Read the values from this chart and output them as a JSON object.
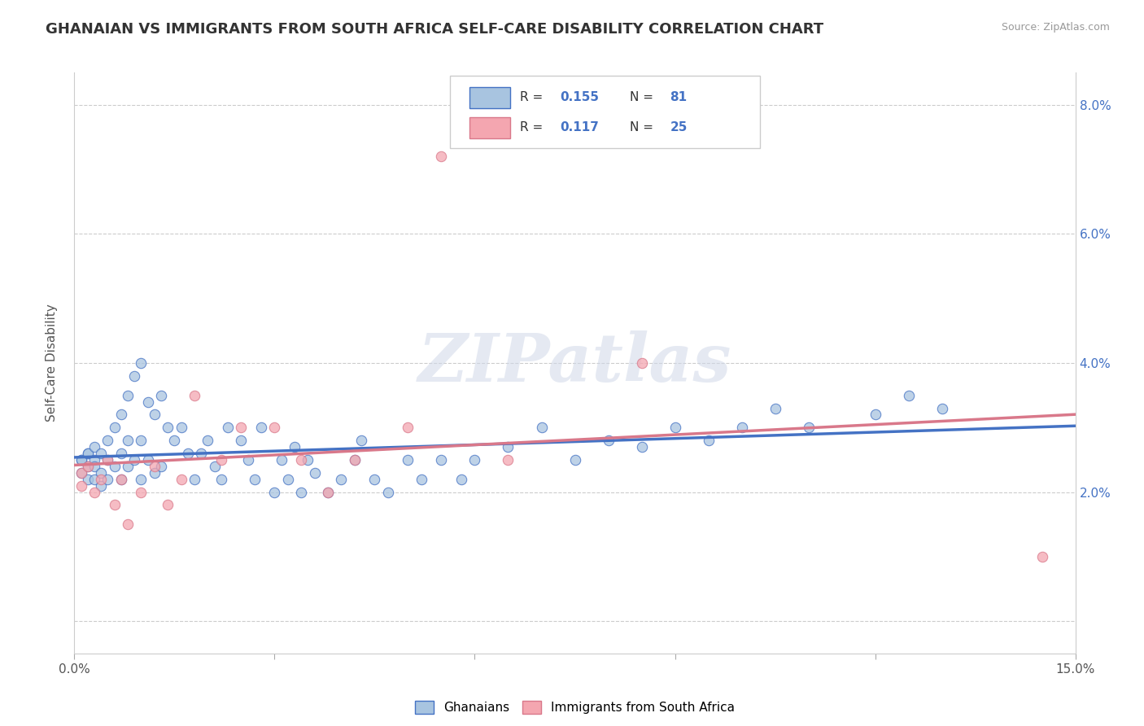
{
  "title": "GHANAIAN VS IMMIGRANTS FROM SOUTH AFRICA SELF-CARE DISABILITY CORRELATION CHART",
  "source_text": "Source: ZipAtlas.com",
  "ylabel": "Self-Care Disability",
  "xlim": [
    0.0,
    0.15
  ],
  "ylim": [
    -0.005,
    0.085
  ],
  "x_ticks": [
    0.0,
    0.03,
    0.06,
    0.09,
    0.12,
    0.15
  ],
  "x_tick_labels": [
    "0.0%",
    "",
    "",
    "",
    "",
    "15.0%"
  ],
  "y_ticks": [
    0.0,
    0.02,
    0.04,
    0.06,
    0.08
  ],
  "y_tick_labels": [
    "",
    "2.0%",
    "4.0%",
    "6.0%",
    "8.0%"
  ],
  "ghanaian_color": "#a8c4e0",
  "immigrant_color": "#f4a6b0",
  "ghanaian_line_color": "#4472c4",
  "immigrant_line_color": "#d9788a",
  "ghanaian_x": [
    0.001,
    0.001,
    0.001,
    0.002,
    0.002,
    0.002,
    0.002,
    0.003,
    0.003,
    0.003,
    0.003,
    0.004,
    0.004,
    0.004,
    0.005,
    0.005,
    0.005,
    0.006,
    0.006,
    0.007,
    0.007,
    0.007,
    0.008,
    0.008,
    0.008,
    0.009,
    0.009,
    0.01,
    0.01,
    0.01,
    0.011,
    0.011,
    0.012,
    0.012,
    0.013,
    0.013,
    0.014,
    0.015,
    0.016,
    0.017,
    0.018,
    0.019,
    0.02,
    0.021,
    0.022,
    0.023,
    0.025,
    0.026,
    0.027,
    0.028,
    0.03,
    0.031,
    0.032,
    0.033,
    0.034,
    0.035,
    0.036,
    0.038,
    0.04,
    0.042,
    0.043,
    0.045,
    0.047,
    0.05,
    0.052,
    0.055,
    0.058,
    0.06,
    0.065,
    0.07,
    0.075,
    0.08,
    0.085,
    0.09,
    0.095,
    0.1,
    0.105,
    0.11,
    0.12,
    0.125,
    0.13
  ],
  "ghanaian_y": [
    0.025,
    0.025,
    0.023,
    0.026,
    0.024,
    0.026,
    0.022,
    0.027,
    0.025,
    0.024,
    0.022,
    0.026,
    0.023,
    0.021,
    0.028,
    0.025,
    0.022,
    0.03,
    0.024,
    0.032,
    0.026,
    0.022,
    0.035,
    0.028,
    0.024,
    0.038,
    0.025,
    0.04,
    0.028,
    0.022,
    0.034,
    0.025,
    0.032,
    0.023,
    0.035,
    0.024,
    0.03,
    0.028,
    0.03,
    0.026,
    0.022,
    0.026,
    0.028,
    0.024,
    0.022,
    0.03,
    0.028,
    0.025,
    0.022,
    0.03,
    0.02,
    0.025,
    0.022,
    0.027,
    0.02,
    0.025,
    0.023,
    0.02,
    0.022,
    0.025,
    0.028,
    0.022,
    0.02,
    0.025,
    0.022,
    0.025,
    0.022,
    0.025,
    0.027,
    0.03,
    0.025,
    0.028,
    0.027,
    0.03,
    0.028,
    0.03,
    0.033,
    0.03,
    0.032,
    0.035,
    0.033
  ],
  "immigrant_x": [
    0.001,
    0.001,
    0.002,
    0.003,
    0.004,
    0.005,
    0.006,
    0.007,
    0.008,
    0.01,
    0.012,
    0.014,
    0.016,
    0.018,
    0.022,
    0.025,
    0.03,
    0.034,
    0.038,
    0.042,
    0.05,
    0.055,
    0.065,
    0.085,
    0.145
  ],
  "immigrant_y": [
    0.023,
    0.021,
    0.024,
    0.02,
    0.022,
    0.025,
    0.018,
    0.022,
    0.015,
    0.02,
    0.024,
    0.018,
    0.022,
    0.035,
    0.025,
    0.03,
    0.03,
    0.025,
    0.02,
    0.025,
    0.03,
    0.072,
    0.025,
    0.04,
    0.01
  ],
  "watermark_text": "ZIPatlas"
}
